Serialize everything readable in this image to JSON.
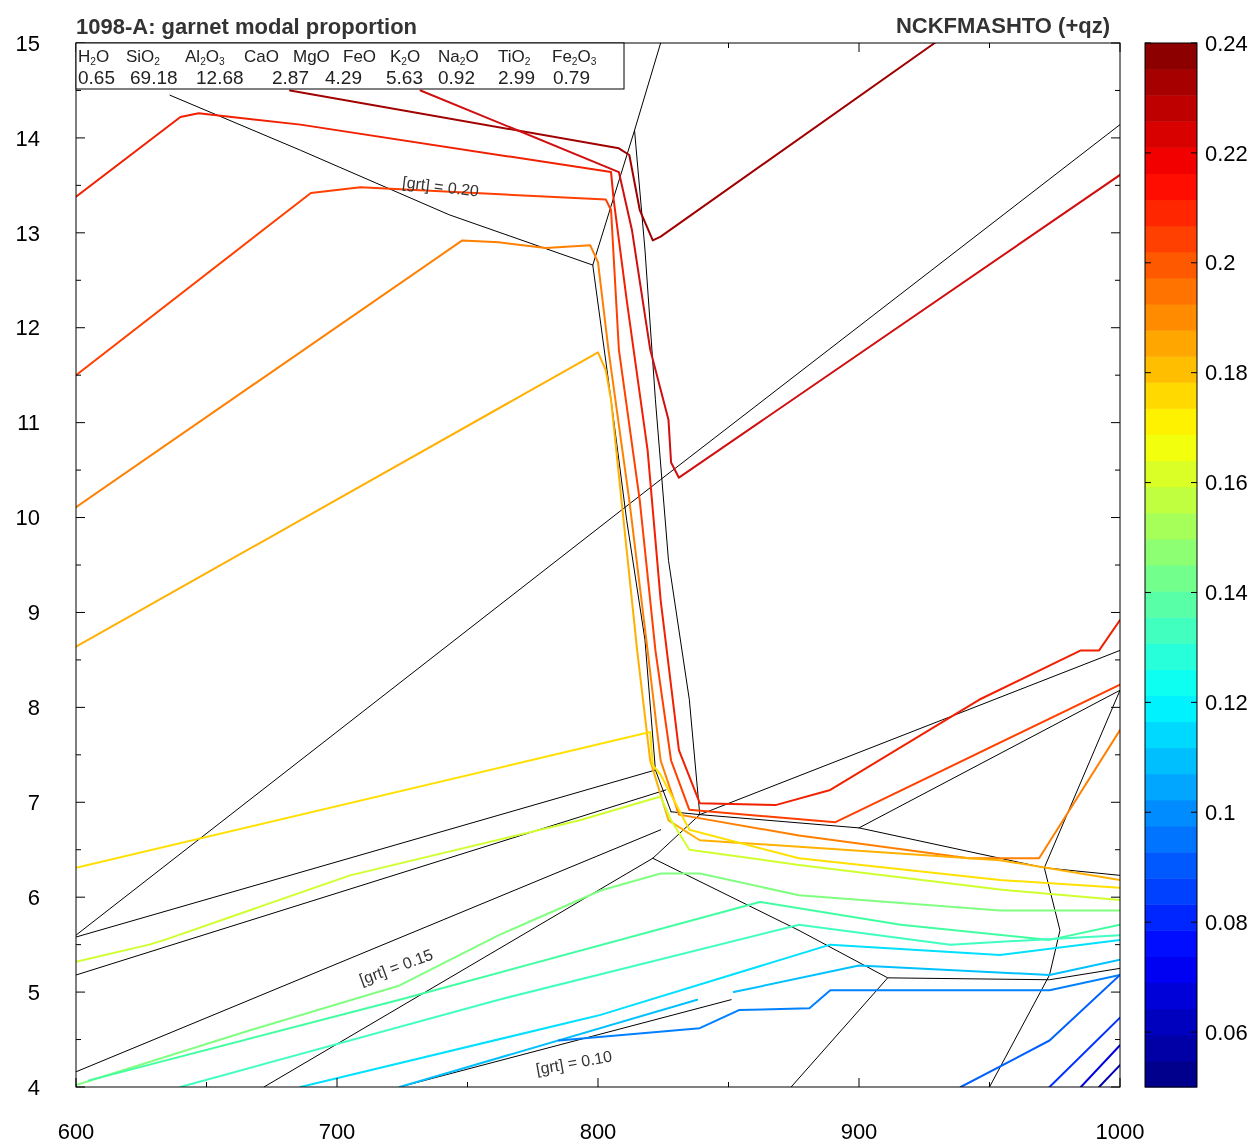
{
  "chart_data": {
    "type": "line",
    "title": "1098-A: garnet modal proportion",
    "subtitle": "NCKFMASHTO (+qz)",
    "xlim": [
      600,
      1000
    ],
    "ylim": [
      4,
      15
    ],
    "xticks": [
      600,
      {
        "value": 650,
        "label": null
      },
      700,
      {
        "value": 750,
        "label": null
      },
      800,
      {
        "value": 850,
        "label": null
      },
      900,
      {
        "value": 950,
        "label": null
      },
      1000
    ],
    "yticks": [
      4,
      {
        "value": 4.5,
        "label": null
      },
      5,
      {
        "value": 5.5,
        "label": null
      },
      6,
      {
        "value": 6.5,
        "label": null
      },
      7,
      {
        "value": 7.5,
        "label": null
      },
      8,
      {
        "value": 8.5,
        "label": null
      },
      9,
      {
        "value": 9.5,
        "label": null
      },
      10,
      {
        "value": 10.5,
        "label": null
      },
      11,
      {
        "value": 11.5,
        "label": null
      },
      12,
      {
        "value": 12.5,
        "label": null
      },
      13,
      {
        "value": 13.5,
        "label": null
      },
      14,
      {
        "value": 14.5,
        "label": null
      },
      15
    ],
    "grid": false,
    "clim": [
      0.05,
      0.24
    ],
    "cticks": [
      0.06,
      0.08,
      0.1,
      0.12,
      0.14,
      0.16,
      0.18,
      0.2,
      0.22,
      0.24
    ],
    "annotations": [
      "H$_{2}$O",
      "SiO$_{2}$",
      "Al$_{2}$O$_{3}$",
      "CaO",
      "MgO",
      "FeO",
      "K$_{2}$O",
      "Na$_{2}$O",
      "TiO$_{2}$",
      "Fe$_{2}$O$_{3}$",
      "0.65",
      "69.18",
      "12.68",
      "2.87",
      "4.29",
      "5.63",
      "0.92",
      "2.99",
      "0.79",
      "[grt] = 0.20",
      "[grt] = 0.15",
      "[grt] = 0.10"
    ],
    "series": [
      {
        "color": "#000000",
        "x": [
          636,
          686,
          743,
          798
        ],
        "values": [
          14.45,
          13.87,
          13.19,
          12.66
        ]
      },
      {
        "color": "#000000",
        "x": [
          824,
          814,
          798,
          805,
          811,
          818,
          822,
          828
        ],
        "values": [
          15.0,
          14.08,
          12.66,
          11.24,
          9.97,
          8.71,
          7.34,
          6.9
        ]
      },
      {
        "color": "#000000",
        "x": [
          814,
          818,
          822,
          827,
          835,
          839
        ],
        "values": [
          14.08,
          12.82,
          11.24,
          9.55,
          8.08,
          6.87
        ]
      },
      {
        "color": "#000000",
        "x": [
          600,
          824,
          1000
        ],
        "values": [
          5.6,
          10.4,
          14.14
        ]
      },
      {
        "color": "#000000",
        "x": [
          600,
          822
        ],
        "values": [
          5.58,
          7.34
        ]
      },
      {
        "color": "#000000",
        "x": [
          600,
          826
        ],
        "values": [
          5.18,
          7.13
        ]
      },
      {
        "color": "#000000",
        "x": [
          1000,
          839,
          821,
          672
        ],
        "values": [
          8.6,
          6.87,
          6.41,
          4.0
        ]
      },
      {
        "color": "#000000",
        "x": [
          900,
          1000
        ],
        "values": [
          6.73,
          8.18
        ]
      },
      {
        "color": "#000000",
        "x": [
          828,
          839,
          900,
          971,
          1000
        ],
        "values": [
          6.9,
          6.87,
          6.73,
          6.31,
          6.23
        ]
      },
      {
        "color": "#000000",
        "x": [
          1000,
          971,
          977,
          973,
          950
        ],
        "values": [
          8.18,
          6.31,
          5.65,
          5.18,
          4.0
        ]
      },
      {
        "color": "#000000",
        "x": [
          821,
          877,
          911,
          973,
          1000
        ],
        "values": [
          6.41,
          5.65,
          5.15,
          5.13,
          5.25
        ]
      },
      {
        "color": "#000000",
        "x": [
          911,
          874
        ],
        "values": [
          5.15,
          4.0
        ]
      },
      {
        "color": "#000000",
        "x": [
          600,
          824
        ],
        "values": [
          4.16,
          6.71
        ]
      },
      {
        "color": "#000000",
        "x": [
          724,
          851
        ],
        "values": [
          4.0,
          4.92
        ]
      },
      {
        "color": "#a00000",
        "x": [
          682,
          808,
          812,
          816,
          821,
          824,
          929
        ],
        "values": [
          14.5,
          13.89,
          13.82,
          13.24,
          12.92,
          12.96,
          15.0
        ]
      },
      {
        "color": "#d01010",
        "x": [
          732,
          808,
          813,
          820,
          827,
          828,
          831,
          1000
        ],
        "values": [
          14.5,
          13.64,
          13.03,
          11.77,
          11.03,
          10.58,
          10.42,
          13.61
        ]
      },
      {
        "color": "#f02000",
        "x": [
          600,
          640,
          647,
          686,
          805,
          806,
          811,
          819,
          824,
          831,
          839,
          868,
          889,
          946,
          985,
          992,
          1000
        ],
        "values": [
          13.38,
          14.22,
          14.26,
          14.14,
          13.64,
          13.35,
          12.29,
          10.71,
          9.13,
          7.55,
          6.99,
          6.97,
          7.13,
          8.08,
          8.6,
          8.6,
          8.92
        ]
      },
      {
        "color": "#ff4000",
        "x": [
          600,
          690,
          709,
          803,
          805,
          808,
          816,
          822,
          828,
          835,
          891,
          1000
        ],
        "values": [
          11.5,
          13.42,
          13.48,
          13.35,
          13.24,
          11.77,
          10.18,
          8.6,
          7.44,
          6.92,
          6.79,
          8.24
        ]
      },
      {
        "color": "#ff8000",
        "x": [
          600,
          748,
          762,
          780,
          797,
          800,
          804,
          812,
          819,
          824,
          831,
          877,
          942,
          969,
          1000
        ],
        "values": [
          10.11,
          12.92,
          12.9,
          12.84,
          12.87,
          12.69,
          11.77,
          10.18,
          8.6,
          7.44,
          6.87,
          6.65,
          6.41,
          6.41,
          7.76
        ]
      },
      {
        "color": "#ffb000",
        "x": [
          600,
          800,
          803,
          805,
          809,
          815,
          820,
          827,
          839,
          954,
          1000
        ],
        "values": [
          8.64,
          11.74,
          11.55,
          11.24,
          10.18,
          8.6,
          7.44,
          6.81,
          6.6,
          6.39,
          6.18
        ]
      },
      {
        "color": "#ffe000",
        "x": [
          600,
          820,
          821,
          824,
          835,
          877,
          954,
          1000
        ],
        "values": [
          6.31,
          7.74,
          7.39,
          7.29,
          6.71,
          6.41,
          6.18,
          6.1
        ]
      },
      {
        "color": "#d0ff30",
        "x": [
          600,
          628,
          634,
          705,
          793,
          824,
          828,
          835,
          877,
          954,
          1000
        ],
        "values": [
          5.32,
          5.5,
          5.55,
          6.23,
          6.81,
          7.06,
          6.81,
          6.5,
          6.34,
          6.08,
          5.97
        ]
      },
      {
        "color": "#80ff80",
        "x": [
          600,
          667,
          724,
          762,
          801,
          824,
          839,
          877,
          954,
          1000
        ],
        "values": [
          4.02,
          4.6,
          5.07,
          5.6,
          6.07,
          6.25,
          6.25,
          6.02,
          5.86,
          5.86
        ]
      },
      {
        "color": "#40ffa0",
        "x": [
          605,
          724,
          862,
          916,
          973,
          1000
        ],
        "values": [
          4.07,
          4.92,
          5.95,
          5.71,
          5.55,
          5.71
        ]
      },
      {
        "color": "#40ffc0",
        "x": [
          640,
          762,
          877,
          935,
          1000
        ],
        "values": [
          4.0,
          4.92,
          5.71,
          5.5,
          5.6
        ]
      },
      {
        "color": "#00e0ff",
        "x": [
          686,
          801,
          889,
          954,
          1000
        ],
        "values": [
          4.0,
          4.76,
          5.5,
          5.39,
          5.55
        ]
      },
      {
        "color": "#00c0ff",
        "x": [
          724,
          838
        ],
        "values": [
          4.0,
          4.92
        ]
      },
      {
        "color": "#00c0ff",
        "x": [
          852,
          900,
          973,
          1000
        ],
        "values": [
          5.0,
          5.28,
          5.18,
          5.34
        ]
      },
      {
        "color": "#0080ff",
        "x": [
          785,
          839,
          854,
          881,
          889,
          973,
          1000
        ],
        "values": [
          4.49,
          4.62,
          4.81,
          4.83,
          5.02,
          5.02,
          5.18
        ]
      },
      {
        "color": "#0060ff",
        "x": [
          939,
          973,
          1000
        ],
        "values": [
          4.0,
          4.49,
          5.18
        ]
      },
      {
        "color": "#0030ff",
        "x": [
          973,
          1000
        ],
        "values": [
          4.0,
          4.73
        ]
      },
      {
        "color": "#0000e0",
        "x": [
          985,
          1000
        ],
        "values": [
          4.0,
          4.44
        ]
      },
      {
        "color": "#0000b0",
        "x": [
          992,
          1000
        ],
        "values": [
          4.0,
          4.23
        ]
      }
    ]
  }
}
